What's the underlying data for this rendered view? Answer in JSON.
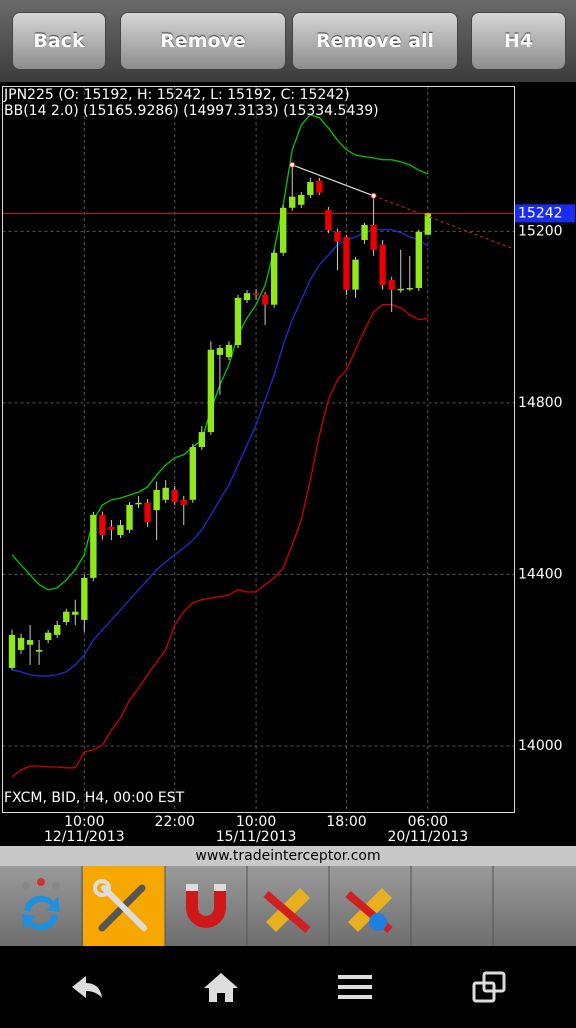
{
  "toolbar": {
    "buttons": [
      "Back",
      "Remove",
      "Remove all",
      "H4"
    ]
  },
  "chart_data": {
    "type": "candlestick",
    "title": "JPN225 (O: 15192, H: 15242, L: 15192, C: 15242)",
    "subtitle": "BB(14 2.0) (15165.9286) (14997.3133) (15334.5439)",
    "note": "FXCM, BID, H4, 00:00 EST",
    "categories": [
      null,
      null,
      null,
      null,
      null,
      null,
      null,
      null,
      "10:00",
      null,
      null,
      null,
      null,
      null,
      null,
      null,
      null,
      null,
      "22:00",
      null,
      null,
      null,
      null,
      null,
      null,
      null,
      null,
      "10:00",
      null,
      null,
      null,
      null,
      null,
      null,
      null,
      null,
      null,
      "18:00",
      null,
      null,
      null,
      null,
      null,
      null,
      null,
      null,
      "06:00"
    ],
    "category_dates": [
      null,
      null,
      null,
      null,
      null,
      null,
      null,
      null,
      "12/11/2013",
      null,
      null,
      null,
      null,
      null,
      null,
      null,
      null,
      null,
      null,
      null,
      null,
      null,
      null,
      null,
      null,
      null,
      null,
      "15/11/2013",
      null,
      null,
      null,
      null,
      null,
      null,
      null,
      null,
      null,
      null,
      null,
      null,
      null,
      null,
      null,
      null,
      null,
      null,
      "20/11/2013"
    ],
    "open": [
      14182,
      14224,
      14236,
      14220,
      14247,
      14259,
      14289,
      14306,
      14294,
      14392,
      14539,
      14511,
      14492,
      14504,
      14565,
      14567,
      14550,
      14574,
      14597,
      14574,
      14574,
      14697,
      14732,
      14912,
      14907,
      14935,
      15040,
      15056,
      15052,
      15029,
      15150,
      15255,
      15262,
      15285,
      15318,
      15250,
      15199,
      15187,
      15064,
      15180,
      15215,
      15169,
      15087,
      15064,
      15066,
      15068,
      15192
    ],
    "high": [
      14271,
      14262,
      14282,
      14247,
      14271,
      14292,
      14320,
      14341,
      14399,
      14546,
      14546,
      14527,
      14527,
      14569,
      14583,
      14576,
      14616,
      14620,
      14606,
      14583,
      14704,
      14746,
      14944,
      14935,
      14944,
      15052,
      15063,
      15065,
      15059,
      15157,
      15262,
      15355,
      15292,
      15325,
      15325,
      15257,
      15206,
      15192,
      15141,
      15220,
      15283,
      15180,
      15094,
      15157,
      15143,
      15204,
      15242
    ],
    "low": [
      14177,
      14215,
      14189,
      14189,
      14240,
      14252,
      14282,
      14282,
      14266,
      14385,
      14481,
      14480,
      14485,
      14497,
      14555,
      14511,
      14480,
      14567,
      14562,
      14515,
      14567,
      14690,
      14725,
      14819,
      14900,
      14928,
      15033,
      15040,
      14982,
      15022,
      15143,
      15248,
      15255,
      15278,
      15285,
      15196,
      15110,
      15052,
      15045,
      15171,
      15143,
      15064,
      15012,
      15057,
      15061,
      15061,
      15192
    ],
    "close": [
      14259,
      14252,
      14247,
      14224,
      14264,
      14282,
      14313,
      14313,
      14392,
      14539,
      14492,
      14504,
      14515,
      14562,
      14567,
      14522,
      14597,
      14602,
      14569,
      14562,
      14697,
      14732,
      14924,
      14928,
      14935,
      15045,
      15056,
      15052,
      15029,
      15150,
      15255,
      15281,
      15285,
      15315,
      15290,
      15203,
      15176,
      15064,
      15134,
      15215,
      15157,
      15075,
      15064,
      15066,
      15068,
      15199,
      15242
    ],
    "up_color": "#8ee81a",
    "down_color": "#e80000",
    "indicators": [
      {
        "color": "#00c800",
        "values": [
          14446,
          14422,
          14399,
          14376,
          14364,
          14369,
          14387,
          14411,
          14446,
          14527,
          14562,
          14574,
          14578,
          14585,
          14592,
          14604,
          14632,
          14655,
          14672,
          14679,
          14697,
          14714,
          14784,
          14842,
          14889,
          14959,
          14998,
          15029,
          15075,
          15157,
          15262,
          15390,
          15448,
          15472,
          15465,
          15441,
          15413,
          15390,
          15378,
          15374,
          15371,
          15367,
          15367,
          15362,
          15355,
          15343,
          15334
        ]
      },
      {
        "color": "#1c2fd0",
        "values": [
          14177,
          14173,
          14166,
          14163,
          14163,
          14166,
          14173,
          14189,
          14212,
          14247,
          14271,
          14294,
          14317,
          14341,
          14364,
          14387,
          14411,
          14429,
          14446,
          14462,
          14480,
          14504,
          14539,
          14574,
          14609,
          14655,
          14702,
          14749,
          14807,
          14865,
          14935,
          14994,
          15040,
          15087,
          15122,
          15145,
          15169,
          15180,
          15187,
          15197,
          15204,
          15204,
          15204,
          15197,
          15187,
          15180,
          15166
        ]
      },
      {
        "color": "#d00000",
        "values": [
          13928,
          13944,
          13953,
          13953,
          13951,
          13951,
          13949,
          13949,
          13986,
          13991,
          14002,
          14037,
          14065,
          14107,
          14135,
          14166,
          14196,
          14224,
          14282,
          14313,
          14334,
          14341,
          14345,
          14348,
          14352,
          14364,
          14359,
          14359,
          14376,
          14392,
          14415,
          14469,
          14527,
          14620,
          14725,
          14807,
          14854,
          14877,
          14924,
          14970,
          15012,
          15029,
          15029,
          15022,
          15005,
          14994,
          14997
        ]
      }
    ],
    "last_price": 15242,
    "last_price_color": "#1a2cf0",
    "ylim": [
      13846,
      15539
    ],
    "yticks": [
      14000,
      14400,
      14800,
      15200
    ],
    "grid": true
  },
  "footer_url": "www.tradeinterceptor.com"
}
